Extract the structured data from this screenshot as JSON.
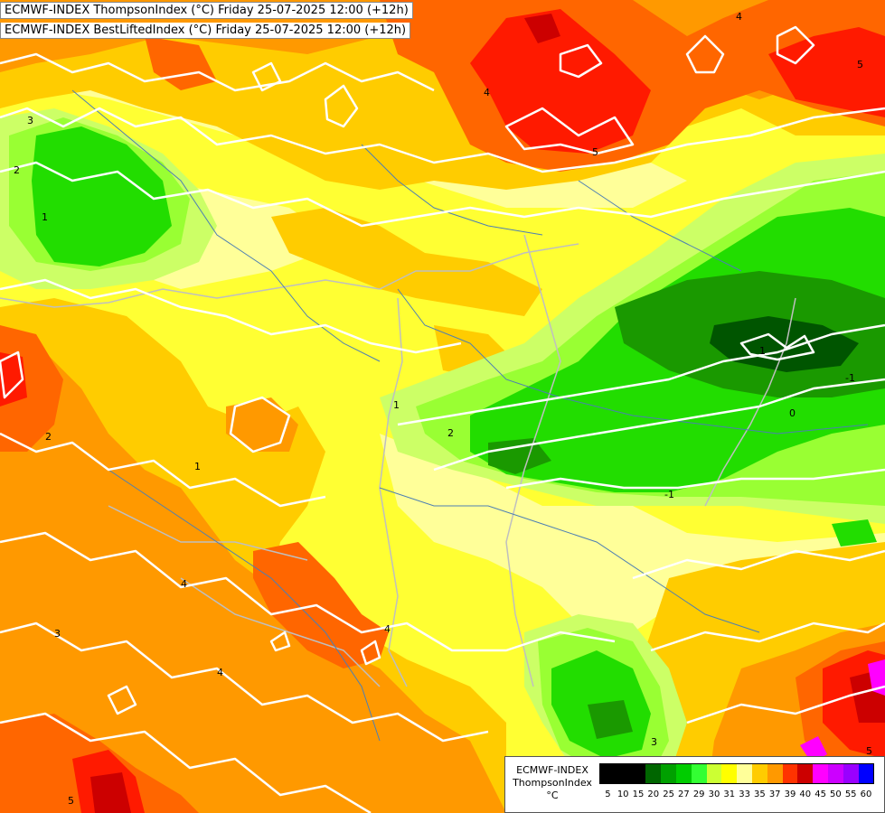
{
  "header": {
    "line1": "ECMWF-INDEX ThompsonIndex (°C) Friday 25-07-2025 12:00 (+12h)",
    "line2": "ECMWF-INDEX BestLiftedIndex (°C) Friday 25-07-2025 12:00 (+12h)"
  },
  "legend": {
    "line1": "ECMWF-INDEX",
    "line2": "ThompsonIndex",
    "line3": "°C",
    "ticks": [
      "5",
      "10",
      "15",
      "20",
      "25",
      "27",
      "29",
      "30",
      "31",
      "33",
      "35",
      "37",
      "39",
      "40",
      "45",
      "50",
      "55",
      "60"
    ],
    "colors": [
      "#000000",
      "#050505",
      "#0a0a0a",
      "#003300",
      "#006600",
      "#009900",
      "#00cc00",
      "#33ff00",
      "#99ff33",
      "#ffff66",
      "#ffff00",
      "#ffcc00",
      "#ff9900",
      "#ff6600",
      "#ff3300",
      "#ff0000",
      "#cc0000",
      "#990000",
      "#ff00ff",
      "#cc00ff",
      "#9900ff",
      "#6600ff",
      "#0000ff"
    ]
  },
  "contour_labels": [
    "1",
    "2",
    "3",
    "4",
    "5",
    "0",
    "1",
    "2",
    "1",
    "-1",
    "-1",
    "2",
    "3",
    "4",
    "4",
    "5",
    "1",
    "5",
    "4",
    "5",
    "3",
    "4"
  ],
  "colors": {
    "lifted_contour": "#ffffff",
    "border_line": "#bfbfbf",
    "river_line": "#4d7fb3",
    "class_30": "#ffff33",
    "class_31": "#ffff99",
    "class_33": "#ffcc00",
    "class_35": "#ff9900",
    "class_37": "#ff6600",
    "class_39": "#ff2a00",
    "class_40": "#cc0000",
    "class_29": "#ccff66",
    "class_27": "#99ff33",
    "class_25": "#33dd00",
    "class_20": "#1a9900",
    "class_15": "#006600",
    "class_45": "#ff00ff"
  }
}
